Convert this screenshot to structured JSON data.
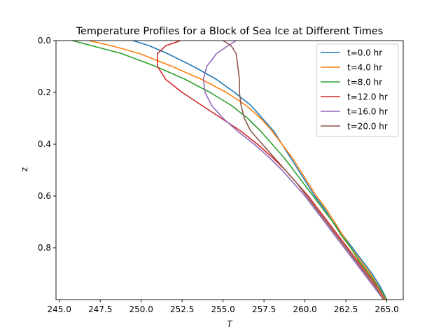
{
  "chart_data": {
    "type": "line",
    "title": "Temperature Profiles for a Block of Sea Ice at Different Times",
    "xlabel": "T",
    "ylabel": "z",
    "xlim": [
      244.8,
      266.0
    ],
    "ylim": [
      0.0,
      1.0
    ],
    "y_inverted": true,
    "x_ticks": [
      245.0,
      247.5,
      250.0,
      252.5,
      255.0,
      257.5,
      260.0,
      262.5,
      265.0
    ],
    "x_tick_labels": [
      "245.0",
      "247.5",
      "250.0",
      "252.5",
      "255.0",
      "257.5",
      "260.0",
      "262.5",
      "265.0"
    ],
    "y_ticks": [
      0.0,
      0.2,
      0.4,
      0.6,
      0.8
    ],
    "y_tick_labels": [
      "0.0",
      "0.2",
      "0.4",
      "0.6",
      "0.8"
    ],
    "grid": false,
    "legend_position": "top-right",
    "series": [
      {
        "name": "t=0.0 hr",
        "color": "#1f77b4",
        "points": [
          [
            249.5,
            0.0
          ],
          [
            250.5,
            0.02
          ],
          [
            251.6,
            0.05
          ],
          [
            253.2,
            0.1
          ],
          [
            254.6,
            0.15
          ],
          [
            255.7,
            0.2
          ],
          [
            256.7,
            0.25
          ],
          [
            257.4,
            0.3
          ],
          [
            258.1,
            0.35
          ],
          [
            258.6,
            0.4
          ],
          [
            259.1,
            0.45
          ],
          [
            259.6,
            0.5
          ],
          [
            260.1,
            0.55
          ],
          [
            260.6,
            0.6
          ],
          [
            261.2,
            0.65
          ],
          [
            261.7,
            0.7
          ],
          [
            262.3,
            0.75
          ],
          [
            262.9,
            0.8
          ],
          [
            263.5,
            0.85
          ],
          [
            264.1,
            0.9
          ],
          [
            264.6,
            0.95
          ],
          [
            265.0,
            1.0
          ]
        ]
      },
      {
        "name": "t=4.0 hr",
        "color": "#ff7f0e",
        "points": [
          [
            246.8,
            0.0
          ],
          [
            248.2,
            0.02
          ],
          [
            249.9,
            0.05
          ],
          [
            251.9,
            0.1
          ],
          [
            253.7,
            0.15
          ],
          [
            255.2,
            0.2
          ],
          [
            256.4,
            0.25
          ],
          [
            257.3,
            0.3
          ],
          [
            258.0,
            0.35
          ],
          [
            258.6,
            0.4
          ],
          [
            259.2,
            0.45
          ],
          [
            259.7,
            0.5
          ],
          [
            260.2,
            0.55
          ],
          [
            260.7,
            0.6
          ],
          [
            261.3,
            0.65
          ],
          [
            261.8,
            0.7
          ],
          [
            262.3,
            0.75
          ],
          [
            262.8,
            0.8
          ],
          [
            263.4,
            0.85
          ],
          [
            264.0,
            0.9
          ],
          [
            264.5,
            0.95
          ],
          [
            265.0,
            1.0
          ]
        ]
      },
      {
        "name": "t=8.0 hr",
        "color": "#2ca02c",
        "points": [
          [
            245.8,
            0.0
          ],
          [
            247.0,
            0.02
          ],
          [
            248.8,
            0.05
          ],
          [
            250.9,
            0.1
          ],
          [
            252.7,
            0.15
          ],
          [
            254.2,
            0.2
          ],
          [
            255.5,
            0.25
          ],
          [
            256.5,
            0.3
          ],
          [
            257.3,
            0.35
          ],
          [
            258.0,
            0.4
          ],
          [
            258.7,
            0.45
          ],
          [
            259.3,
            0.5
          ],
          [
            259.9,
            0.55
          ],
          [
            260.5,
            0.6
          ],
          [
            261.1,
            0.65
          ],
          [
            261.7,
            0.7
          ],
          [
            262.2,
            0.75
          ],
          [
            262.8,
            0.8
          ],
          [
            263.3,
            0.85
          ],
          [
            263.9,
            0.9
          ],
          [
            264.5,
            0.95
          ],
          [
            265.0,
            1.0
          ]
        ]
      },
      {
        "name": "t=12.0 hr",
        "color": "#d62728",
        "points": [
          [
            252.4,
            0.0
          ],
          [
            251.5,
            0.02
          ],
          [
            251.0,
            0.05
          ],
          [
            251.0,
            0.1
          ],
          [
            251.5,
            0.15
          ],
          [
            252.5,
            0.2
          ],
          [
            253.7,
            0.25
          ],
          [
            254.9,
            0.3
          ],
          [
            256.1,
            0.35
          ],
          [
            257.1,
            0.4
          ],
          [
            258.0,
            0.45
          ],
          [
            258.8,
            0.5
          ],
          [
            259.5,
            0.55
          ],
          [
            260.2,
            0.6
          ],
          [
            260.8,
            0.65
          ],
          [
            261.4,
            0.7
          ],
          [
            262.0,
            0.75
          ],
          [
            262.6,
            0.8
          ],
          [
            263.2,
            0.85
          ],
          [
            263.8,
            0.9
          ],
          [
            264.4,
            0.95
          ],
          [
            264.9,
            1.0
          ]
        ]
      },
      {
        "name": "t=16.0 hr",
        "color": "#9467bd",
        "points": [
          [
            255.8,
            0.0
          ],
          [
            255.3,
            0.02
          ],
          [
            254.6,
            0.05
          ],
          [
            254.0,
            0.1
          ],
          [
            253.8,
            0.15
          ],
          [
            253.9,
            0.2
          ],
          [
            254.3,
            0.25
          ],
          [
            255.0,
            0.3
          ],
          [
            255.9,
            0.35
          ],
          [
            256.9,
            0.4
          ],
          [
            257.8,
            0.45
          ],
          [
            258.6,
            0.5
          ],
          [
            259.3,
            0.55
          ],
          [
            260.0,
            0.6
          ],
          [
            260.6,
            0.65
          ],
          [
            261.2,
            0.7
          ],
          [
            261.8,
            0.75
          ],
          [
            262.4,
            0.8
          ],
          [
            263.0,
            0.85
          ],
          [
            263.6,
            0.9
          ],
          [
            264.2,
            0.95
          ],
          [
            264.8,
            1.0
          ]
        ]
      },
      {
        "name": "t=20.0 hr",
        "color": "#8c564b",
        "points": [
          [
            255.0,
            0.0
          ],
          [
            255.5,
            0.02
          ],
          [
            255.8,
            0.05
          ],
          [
            255.9,
            0.1
          ],
          [
            256.0,
            0.15
          ],
          [
            256.0,
            0.2
          ],
          [
            256.1,
            0.25
          ],
          [
            256.3,
            0.3
          ],
          [
            256.7,
            0.35
          ],
          [
            257.4,
            0.4
          ],
          [
            258.1,
            0.45
          ],
          [
            258.8,
            0.5
          ],
          [
            259.5,
            0.55
          ],
          [
            260.1,
            0.6
          ],
          [
            260.7,
            0.65
          ],
          [
            261.3,
            0.7
          ],
          [
            261.9,
            0.75
          ],
          [
            262.5,
            0.8
          ],
          [
            263.1,
            0.85
          ],
          [
            263.7,
            0.9
          ],
          [
            264.3,
            0.95
          ],
          [
            264.8,
            1.0
          ]
        ]
      }
    ]
  }
}
